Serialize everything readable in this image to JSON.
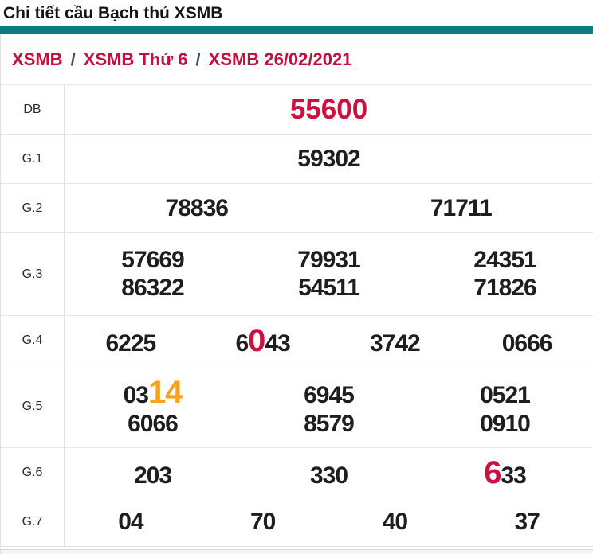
{
  "colors": {
    "accent_teal": "#087e83",
    "highlight_red": "#cc1040",
    "highlight_orange": "#f9a11d"
  },
  "header": {
    "title": "Chi tiết cầu Bạch thủ XSMB"
  },
  "breadcrumb": {
    "separator": "/",
    "items": [
      "XSMB",
      "XSMB Thứ 6",
      "XSMB 26/02/2021"
    ]
  },
  "prizes": {
    "db": {
      "label": "DB",
      "value": "55600"
    },
    "g1": {
      "label": "G.1",
      "value": "59302"
    },
    "g2": {
      "label": "G.2",
      "v1": "78836",
      "v2": "71711"
    },
    "g3": {
      "label": "G.3",
      "r1c1": "57669",
      "r1c2": "79931",
      "r1c3": "24351",
      "r2c1": "86322",
      "r2c2": "54511",
      "r2c3": "71826"
    },
    "g4": {
      "label": "G.4",
      "v1": "6225",
      "v2_pre": "6",
      "v2_hl": "0",
      "v2_post": "43",
      "v3": "3742",
      "v4": "0666"
    },
    "g5": {
      "label": "G.5",
      "r1c1_pre": "03",
      "r1c1_hl": "14",
      "r1c2": "6945",
      "r1c3": "0521",
      "r2c1": "6066",
      "r2c2": "8579",
      "r2c3": "0910"
    },
    "g6": {
      "label": "G.6",
      "v1": "203",
      "v2": "330",
      "v3_hl": "6",
      "v3_post": "33"
    },
    "g7": {
      "label": "G.7",
      "v1": "04",
      "v2": "70",
      "v3": "40",
      "v4": "37"
    }
  }
}
